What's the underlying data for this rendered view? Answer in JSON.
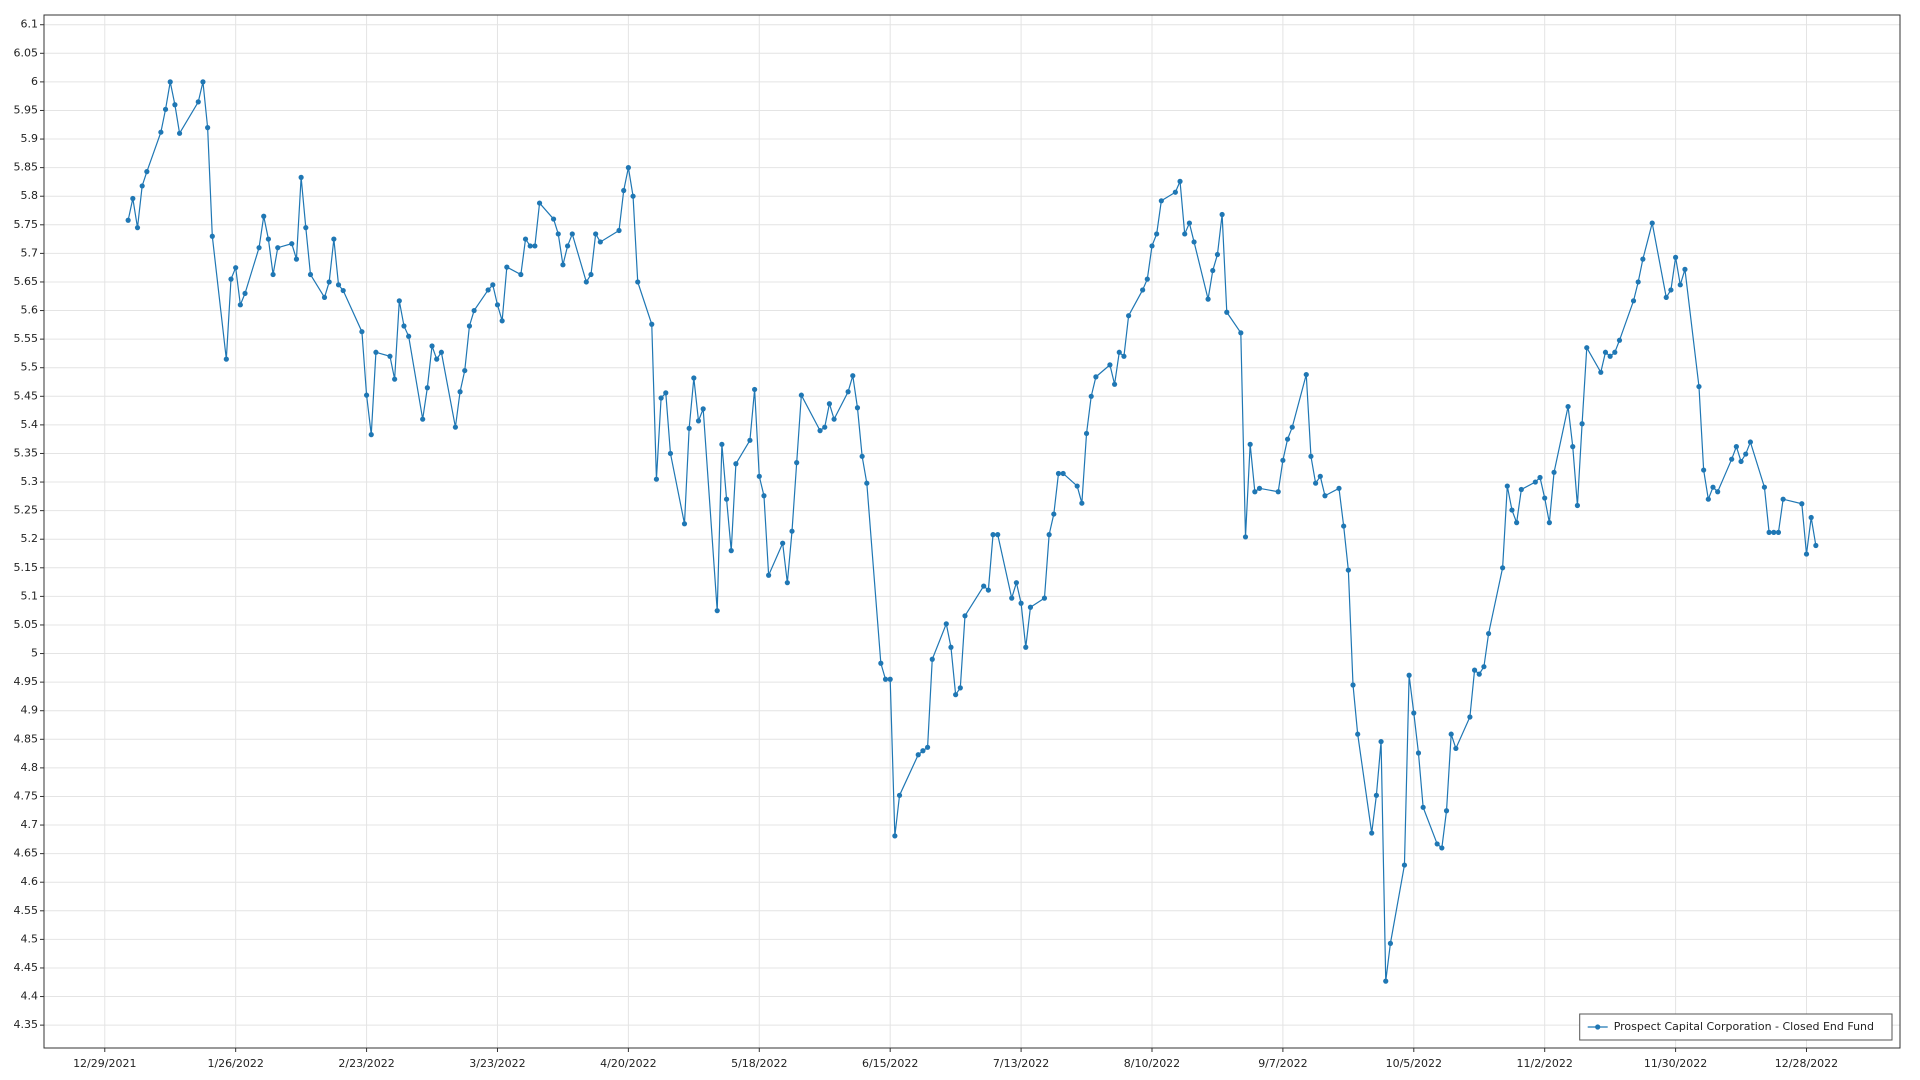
{
  "chart_data": {
    "type": "line",
    "x": [
      "2022-01-03",
      "2022-01-04",
      "2022-01-05",
      "2022-01-06",
      "2022-01-07",
      "2022-01-10",
      "2022-01-11",
      "2022-01-12",
      "2022-01-13",
      "2022-01-14",
      "2022-01-18",
      "2022-01-19",
      "2022-01-20",
      "2022-01-21",
      "2022-01-24",
      "2022-01-25",
      "2022-01-26",
      "2022-01-27",
      "2022-01-28",
      "2022-01-31",
      "2022-02-01",
      "2022-02-02",
      "2022-02-03",
      "2022-02-04",
      "2022-02-07",
      "2022-02-08",
      "2022-02-09",
      "2022-02-10",
      "2022-02-11",
      "2022-02-14",
      "2022-02-15",
      "2022-02-16",
      "2022-02-17",
      "2022-02-18",
      "2022-02-22",
      "2022-02-23",
      "2022-02-24",
      "2022-02-25",
      "2022-02-28",
      "2022-03-01",
      "2022-03-02",
      "2022-03-03",
      "2022-03-04",
      "2022-03-07",
      "2022-03-08",
      "2022-03-09",
      "2022-03-10",
      "2022-03-11",
      "2022-03-14",
      "2022-03-15",
      "2022-03-16",
      "2022-03-17",
      "2022-03-18",
      "2022-03-21",
      "2022-03-22",
      "2022-03-23",
      "2022-03-24",
      "2022-03-25",
      "2022-03-28",
      "2022-03-29",
      "2022-03-30",
      "2022-03-31",
      "2022-04-01",
      "2022-04-04",
      "2022-04-05",
      "2022-04-06",
      "2022-04-07",
      "2022-04-08",
      "2022-04-11",
      "2022-04-12",
      "2022-04-13",
      "2022-04-14",
      "2022-04-18",
      "2022-04-19",
      "2022-04-20",
      "2022-04-21",
      "2022-04-22",
      "2022-04-25",
      "2022-04-26",
      "2022-04-27",
      "2022-04-28",
      "2022-04-29",
      "2022-05-02",
      "2022-05-03",
      "2022-05-04",
      "2022-05-05",
      "2022-05-06",
      "2022-05-09",
      "2022-05-10",
      "2022-05-11",
      "2022-05-12",
      "2022-05-13",
      "2022-05-16",
      "2022-05-17",
      "2022-05-18",
      "2022-05-19",
      "2022-05-20",
      "2022-05-23",
      "2022-05-24",
      "2022-05-25",
      "2022-05-26",
      "2022-05-27",
      "2022-05-31",
      "2022-06-01",
      "2022-06-02",
      "2022-06-03",
      "2022-06-06",
      "2022-06-07",
      "2022-06-08",
      "2022-06-09",
      "2022-06-10",
      "2022-06-13",
      "2022-06-14",
      "2022-06-15",
      "2022-06-16",
      "2022-06-17",
      "2022-06-21",
      "2022-06-22",
      "2022-06-23",
      "2022-06-24",
      "2022-06-27",
      "2022-06-28",
      "2022-06-29",
      "2022-06-30",
      "2022-07-01",
      "2022-07-05",
      "2022-07-06",
      "2022-07-07",
      "2022-07-08",
      "2022-07-11",
      "2022-07-12",
      "2022-07-13",
      "2022-07-14",
      "2022-07-15",
      "2022-07-18",
      "2022-07-19",
      "2022-07-20",
      "2022-07-21",
      "2022-07-22",
      "2022-07-25",
      "2022-07-26",
      "2022-07-27",
      "2022-07-28",
      "2022-07-29",
      "2022-08-01",
      "2022-08-02",
      "2022-08-03",
      "2022-08-04",
      "2022-08-05",
      "2022-08-08",
      "2022-08-09",
      "2022-08-10",
      "2022-08-11",
      "2022-08-12",
      "2022-08-15",
      "2022-08-16",
      "2022-08-17",
      "2022-08-18",
      "2022-08-19",
      "2022-08-22",
      "2022-08-23",
      "2022-08-24",
      "2022-08-25",
      "2022-08-26",
      "2022-08-29",
      "2022-08-30",
      "2022-08-31",
      "2022-09-01",
      "2022-09-02",
      "2022-09-06",
      "2022-09-07",
      "2022-09-08",
      "2022-09-09",
      "2022-09-12",
      "2022-09-13",
      "2022-09-14",
      "2022-09-15",
      "2022-09-16",
      "2022-09-19",
      "2022-09-20",
      "2022-09-21",
      "2022-09-22",
      "2022-09-23",
      "2022-09-26",
      "2022-09-27",
      "2022-09-28",
      "2022-09-29",
      "2022-09-30",
      "2022-10-03",
      "2022-10-04",
      "2022-10-05",
      "2022-10-06",
      "2022-10-07",
      "2022-10-10",
      "2022-10-11",
      "2022-10-12",
      "2022-10-13",
      "2022-10-14",
      "2022-10-17",
      "2022-10-18",
      "2022-10-19",
      "2022-10-20",
      "2022-10-21",
      "2022-10-24",
      "2022-10-25",
      "2022-10-26",
      "2022-10-27",
      "2022-10-28",
      "2022-10-31",
      "2022-11-01",
      "2022-11-02",
      "2022-11-03",
      "2022-11-04",
      "2022-11-07",
      "2022-11-08",
      "2022-11-09",
      "2022-11-10",
      "2022-11-11",
      "2022-11-14",
      "2022-11-15",
      "2022-11-16",
      "2022-11-17",
      "2022-11-18",
      "2022-11-21",
      "2022-11-22",
      "2022-11-23",
      "2022-11-25",
      "2022-11-28",
      "2022-11-29",
      "2022-11-30",
      "2022-12-01",
      "2022-12-02",
      "2022-12-05",
      "2022-12-06",
      "2022-12-07",
      "2022-12-08",
      "2022-12-09",
      "2022-12-12",
      "2022-12-13",
      "2022-12-14",
      "2022-12-15",
      "2022-12-16",
      "2022-12-19",
      "2022-12-20",
      "2022-12-21",
      "2022-12-22",
      "2022-12-23",
      "2022-12-27",
      "2022-12-28",
      "2022-12-29",
      "2022-12-30"
    ],
    "series": [
      {
        "name": "Prospect Capital Corporation - Closed End Fund",
        "color": "#1f77b4",
        "values": [
          5.758,
          5.796,
          5.745,
          5.818,
          5.843,
          5.912,
          5.952,
          6.0,
          5.96,
          5.91,
          5.965,
          6.0,
          5.92,
          5.73,
          5.515,
          5.655,
          5.675,
          5.61,
          5.63,
          5.71,
          5.765,
          5.725,
          5.663,
          5.71,
          5.717,
          5.69,
          5.833,
          5.745,
          5.663,
          5.623,
          5.65,
          5.725,
          5.645,
          5.635,
          5.563,
          5.452,
          5.383,
          5.527,
          5.52,
          5.48,
          5.617,
          5.573,
          5.555,
          5.41,
          5.465,
          5.538,
          5.515,
          5.527,
          5.396,
          5.458,
          5.495,
          5.573,
          5.6,
          5.636,
          5.645,
          5.61,
          5.582,
          5.676,
          5.663,
          5.725,
          5.713,
          5.713,
          5.788,
          5.76,
          5.734,
          5.68,
          5.713,
          5.734,
          5.65,
          5.663,
          5.734,
          5.72,
          5.74,
          5.81,
          5.85,
          5.8,
          5.65,
          5.576,
          5.305,
          5.447,
          5.456,
          5.35,
          5.227,
          5.394,
          5.482,
          5.407,
          5.428,
          5.075,
          5.366,
          5.27,
          5.18,
          5.332,
          5.373,
          5.462,
          5.31,
          5.276,
          5.137,
          5.193,
          5.124,
          5.214,
          5.334,
          5.452,
          5.39,
          5.396,
          5.437,
          5.41,
          5.458,
          5.486,
          5.43,
          5.345,
          5.298,
          4.983,
          4.955,
          4.955,
          4.681,
          4.752,
          4.823,
          4.83,
          4.836,
          4.99,
          5.052,
          5.011,
          4.928,
          4.94,
          5.066,
          5.118,
          5.111,
          5.208,
          5.208,
          5.097,
          5.124,
          5.088,
          5.011,
          5.081,
          5.097,
          5.208,
          5.244,
          5.315,
          5.315,
          5.293,
          5.263,
          5.385,
          5.45,
          5.484,
          5.505,
          5.471,
          5.527,
          5.52,
          5.591,
          5.636,
          5.655,
          5.713,
          5.734,
          5.792,
          5.807,
          5.826,
          5.734,
          5.753,
          5.72,
          5.62,
          5.67,
          5.698,
          5.768,
          5.597,
          5.561,
          5.204,
          5.366,
          5.283,
          5.289,
          5.283,
          5.338,
          5.375,
          5.396,
          5.488,
          5.345,
          5.298,
          5.31,
          5.276,
          5.289,
          5.223,
          5.146,
          4.945,
          4.859,
          4.686,
          4.752,
          4.846,
          4.427,
          4.493,
          4.63,
          4.962,
          4.896,
          4.826,
          4.731,
          4.667,
          4.66,
          4.725,
          4.859,
          4.834,
          4.889,
          4.971,
          4.964,
          4.977,
          5.035,
          5.15,
          5.293,
          5.251,
          5.229,
          5.287,
          5.3,
          5.308,
          5.272,
          5.229,
          5.317,
          5.432,
          5.362,
          5.259,
          5.402,
          5.535,
          5.492,
          5.527,
          5.52,
          5.527,
          5.548,
          5.617,
          5.65,
          5.69,
          5.753,
          5.623,
          5.636,
          5.693,
          5.645,
          5.672,
          5.467,
          5.321,
          5.27,
          5.291,
          5.283,
          5.34,
          5.362,
          5.336,
          5.349,
          5.37,
          5.291,
          5.212,
          5.212,
          5.212,
          5.27,
          5.262,
          5.174,
          5.238,
          5.189
        ]
      }
    ],
    "xlim": [
      "2021-12-16",
      "2023-01-17"
    ],
    "xticks": [
      {
        "value": "2021-12-29",
        "label": "12/29/2021"
      },
      {
        "value": "2022-01-26",
        "label": "1/26/2022"
      },
      {
        "value": "2022-02-23",
        "label": "2/23/2022"
      },
      {
        "value": "2022-03-23",
        "label": "3/23/2022"
      },
      {
        "value": "2022-04-20",
        "label": "4/20/2022"
      },
      {
        "value": "2022-05-18",
        "label": "5/18/2022"
      },
      {
        "value": "2022-06-15",
        "label": "6/15/2022"
      },
      {
        "value": "2022-07-13",
        "label": "7/13/2022"
      },
      {
        "value": "2022-08-10",
        "label": "8/10/2022"
      },
      {
        "value": "2022-09-07",
        "label": "9/7/2022"
      },
      {
        "value": "2022-10-05",
        "label": "10/5/2022"
      },
      {
        "value": "2022-11-02",
        "label": "11/2/2022"
      },
      {
        "value": "2022-11-30",
        "label": "11/30/2022"
      },
      {
        "value": "2022-12-28",
        "label": "12/28/2022"
      }
    ],
    "ylim": [
      4.31,
      6.117
    ],
    "yticks": [
      4.35,
      4.4,
      4.45,
      4.5,
      4.55,
      4.6,
      4.65,
      4.7,
      4.75,
      4.8,
      4.85,
      4.9,
      4.95,
      5,
      5.05,
      5.1,
      5.15,
      5.2,
      5.25,
      5.3,
      5.35,
      5.4,
      5.45,
      5.5,
      5.55,
      5.6,
      5.65,
      5.7,
      5.75,
      5.8,
      5.85,
      5.9,
      5.95,
      6,
      6.05,
      6.1
    ],
    "grid": true,
    "markers": true,
    "legend": "lower right"
  }
}
